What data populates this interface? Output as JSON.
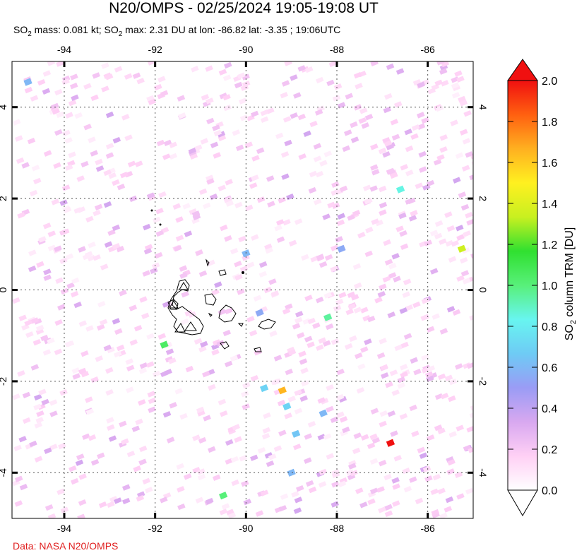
{
  "header": {
    "title": "N20/OMPS - 02/25/2024 19:05-19:08 UT",
    "subtitle_pre": "SO",
    "subtitle_sub": "2",
    "subtitle_mid": " mass: 0.081 kt; SO",
    "subtitle_sub2": "2",
    "subtitle_post": " max: 2.31 DU at lon: -86.82 lat: -3.35 ; 19:06UTC"
  },
  "footer": {
    "credit": "Data: NASA N20/OMPS"
  },
  "map": {
    "lon_range": [
      -95.15,
      -85.0
    ],
    "lat_range": [
      -5.0,
      5.0
    ],
    "lon_ticks": [
      -94,
      -92,
      -90,
      -88,
      -86
    ],
    "lat_ticks": [
      4,
      2,
      0,
      -2,
      -4
    ],
    "lon_tick_labels": [
      "-94",
      "-92",
      "-90",
      "-88",
      "-86"
    ],
    "lat_tick_labels": [
      "4",
      "2",
      "0",
      "-2",
      "-4"
    ],
    "grid": "dotted",
    "highlight_pixels": [
      {
        "lon": -86.82,
        "lat": -3.35,
        "value": 2.31
      },
      {
        "lon": -89.2,
        "lat": -2.2,
        "value": 1.65
      },
      {
        "lon": -85.25,
        "lat": 0.9,
        "value": 1.35
      },
      {
        "lon": -91.8,
        "lat": -1.2,
        "value": 1.05
      },
      {
        "lon": -88.2,
        "lat": -0.6,
        "value": 0.95
      },
      {
        "lon": -86.6,
        "lat": 2.2,
        "value": 0.85
      },
      {
        "lon": -90.5,
        "lat": -4.5,
        "value": 1.0
      },
      {
        "lon": -89.6,
        "lat": -2.15,
        "value": 0.7
      },
      {
        "lon": -89.1,
        "lat": -2.55,
        "value": 0.7
      },
      {
        "lon": -88.9,
        "lat": -3.15,
        "value": 0.65
      },
      {
        "lon": -94.8,
        "lat": 4.55,
        "value": 0.6
      },
      {
        "lon": -90.0,
        "lat": 0.8,
        "value": 0.6
      },
      {
        "lon": -88.3,
        "lat": -2.7,
        "value": 0.6
      },
      {
        "lon": -89.7,
        "lat": -0.5,
        "value": 0.55
      },
      {
        "lon": -87.9,
        "lat": 0.9,
        "value": 0.55
      },
      {
        "lon": -89.0,
        "lat": -4.0,
        "value": 0.6
      }
    ]
  },
  "colorbar": {
    "title_pre": "SO",
    "title_sub": "2",
    "title_post": " column TRM [DU]",
    "min": 0.0,
    "max": 2.0,
    "tick_labels": [
      "2.0",
      "1.8",
      "1.6",
      "1.4",
      "1.2",
      "1.0",
      "0.8",
      "0.6",
      "0.4",
      "0.2",
      "0.0"
    ],
    "colors": [
      "#ffffff",
      "#ffd0f5",
      "#d8a8f0",
      "#9a9cf5",
      "#6ecbf5",
      "#68f5f0",
      "#58f07a",
      "#30e030",
      "#c8f020",
      "#fff020",
      "#ffb020",
      "#ff6010",
      "#f01010"
    ]
  }
}
